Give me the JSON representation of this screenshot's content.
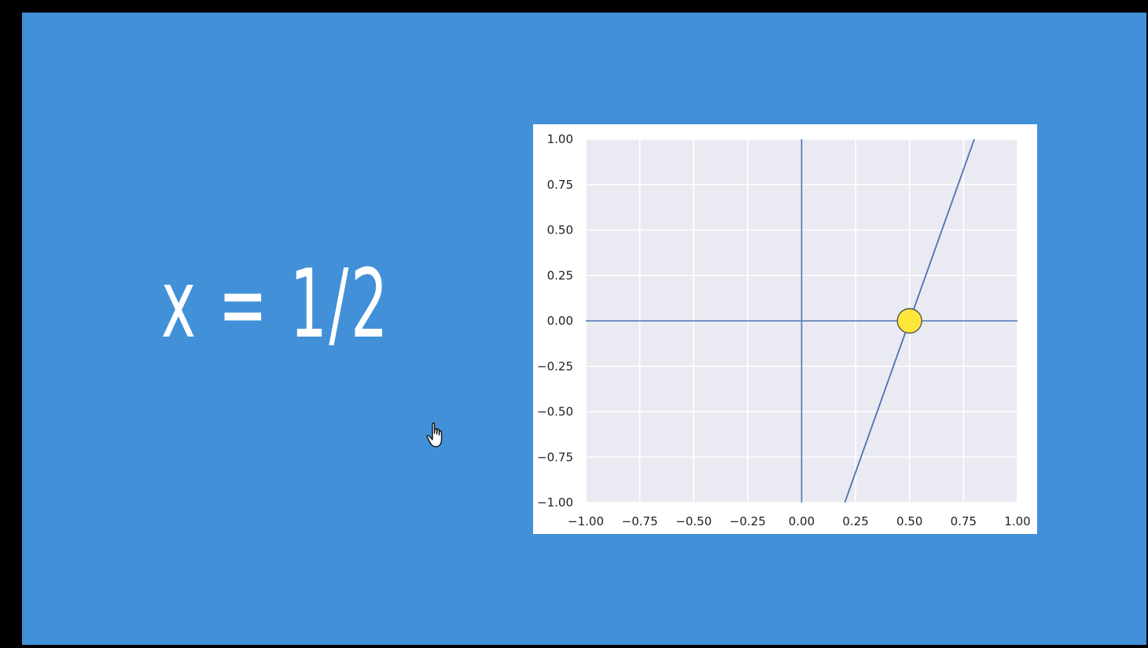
{
  "equation": {
    "text": "x = 1/2"
  },
  "chart_data": {
    "type": "line",
    "title": "",
    "xlabel": "",
    "ylabel": "",
    "xlim": [
      -1.0,
      1.0
    ],
    "ylim": [
      -1.0,
      1.0
    ],
    "grid": true,
    "x_ticks": [
      "−1.00",
      "−0.75",
      "−0.50",
      "−0.25",
      "0.00",
      "0.25",
      "0.50",
      "0.75",
      "1.00"
    ],
    "y_ticks": [
      "1.00",
      "0.75",
      "0.50",
      "0.25",
      "0.00",
      "−0.25",
      "−0.50",
      "−0.75",
      "−1.00"
    ],
    "x_tick_values": [
      -1.0,
      -0.75,
      -0.5,
      -0.25,
      0.0,
      0.25,
      0.5,
      0.75,
      1.0
    ],
    "y_tick_values": [
      1.0,
      0.75,
      0.5,
      0.25,
      0.0,
      -0.25,
      -0.5,
      -0.75,
      -1.0
    ],
    "axes_lines": [
      {
        "name": "x-axis",
        "x": [
          -1.0,
          1.0
        ],
        "y": [
          0.0,
          0.0
        ]
      },
      {
        "name": "y-axis",
        "x": [
          0.0,
          0.0
        ],
        "y": [
          -1.0,
          1.0
        ]
      }
    ],
    "series": [
      {
        "x": [
          0.2,
          0.8
        ],
        "y": [
          -1.0,
          1.0
        ]
      }
    ],
    "points": [
      {
        "x": 0.5,
        "y": 0.0
      }
    ],
    "colors": {
      "plot_background": "#eaeaf2",
      "grid": "#ffffff",
      "line": "#4c72b0",
      "point_fill": "#ffe63a",
      "point_stroke": "#555555",
      "slide_background": "#4290d8"
    }
  }
}
